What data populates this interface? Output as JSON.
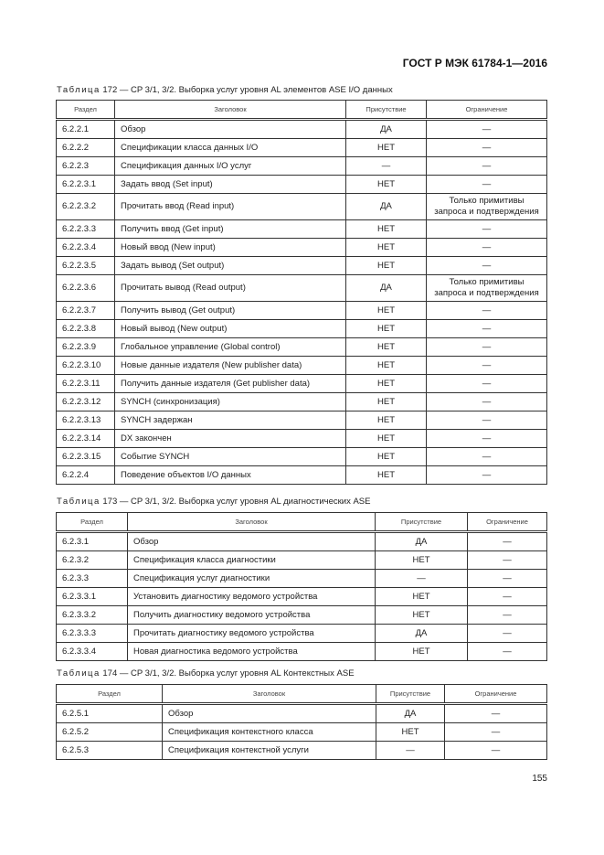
{
  "header": "ГОСТ Р МЭК 61784-1—2016",
  "page_number": "155",
  "tables": [
    {
      "caption_prefix": "Таблица",
      "caption": " 172 — CP 3/1, 3/2. Выборка услуг уровня AL элементов ASE I/O данных",
      "columns": [
        "Раздел",
        "Заголовок",
        "Присутствие",
        "Ограничение"
      ],
      "rows": [
        [
          "6.2.2.1",
          "Обзор",
          "ДА",
          "—"
        ],
        [
          "6.2.2.2",
          "Спецификации класса данных I/O",
          "НЕТ",
          "—"
        ],
        [
          "6.2.2.3",
          "Спецификация данных I/O услуг",
          "—",
          "—"
        ],
        [
          "6.2.2.3.1",
          "Задать ввод (Set input)",
          "НЕТ",
          "—"
        ],
        [
          "6.2.2.3.2",
          "Прочитать ввод (Read input)",
          "ДА",
          "Только примитивы запроса и подтверждения"
        ],
        [
          "6.2.2.3.3",
          "Получить ввод (Get input)",
          "НЕТ",
          "—"
        ],
        [
          "6.2.2.3.4",
          "Новый ввод (New input)",
          "НЕТ",
          "—"
        ],
        [
          "6.2.2.3.5",
          "Задать вывод (Set output)",
          "НЕТ",
          "—"
        ],
        [
          "6.2.2.3.6",
          "Прочитать вывод (Read output)",
          "ДА",
          "Только примитивы запроса и подтверждения"
        ],
        [
          "6.2.2.3.7",
          "Получить вывод (Get output)",
          "НЕТ",
          "—"
        ],
        [
          "6.2.2.3.8",
          "Новый вывод (New output)",
          "НЕТ",
          "—"
        ],
        [
          "6.2.2.3.9",
          "Глобальное управление (Global control)",
          "НЕТ",
          "—"
        ],
        [
          "6.2.2.3.10",
          "Новые данные издателя (New publisher data)",
          "НЕТ",
          "—"
        ],
        [
          "6.2.2.3.11",
          "Получить данные издателя (Get publisher data)",
          "НЕТ",
          "—"
        ],
        [
          "6.2.2.3.12",
          "SYNCH (синхронизация)",
          "НЕТ",
          "—"
        ],
        [
          "6.2.2.3.13",
          "SYNCH задержан",
          "НЕТ",
          "—"
        ],
        [
          "6.2.2.3.14",
          "DX закончен",
          "НЕТ",
          "—"
        ],
        [
          "6.2.2.3.15",
          "Событие SYNCH",
          "НЕТ",
          "—"
        ],
        [
          "6.2.2.4",
          "Поведение объектов I/O данных",
          "НЕТ",
          "—"
        ]
      ]
    },
    {
      "caption_prefix": "Таблица",
      "caption": " 173 — CP 3/1, 3/2. Выборка услуг уровня AL диагностических ASE",
      "columns": [
        "Раздел",
        "Заголовок",
        "Присутствие",
        "Ограничение"
      ],
      "rows": [
        [
          "6.2.3.1",
          "Обзор",
          "ДА",
          "—"
        ],
        [
          "6.2.3.2",
          "Спецификация класса диагностики",
          "НЕТ",
          "—"
        ],
        [
          "6.2.3.3",
          "Спецификация услуг диагностики",
          "—",
          "—"
        ],
        [
          "6.2.3.3.1",
          "Установить диагностику ведомого устройства",
          "НЕТ",
          "—"
        ],
        [
          "6.2.3.3.2",
          "Получить диагностику ведомого устройства",
          "НЕТ",
          "—"
        ],
        [
          "6.2.3.3.3",
          "Прочитать диагностику ведомого устройства",
          "ДА",
          "—"
        ],
        [
          "6.2.3.3.4",
          "Новая диагностика ведомого устройства",
          "НЕТ",
          "—"
        ]
      ]
    },
    {
      "caption_prefix": "Таблица",
      "caption": " 174 — CP 3/1, 3/2. Выборка услуг уровня AL Контекстных ASE",
      "columns": [
        "Раздел",
        "Заголовок",
        "Присутствие",
        "Ограничение"
      ],
      "rows": [
        [
          "6.2.5.1",
          "Обзор",
          "ДА",
          "—"
        ],
        [
          "6.2.5.2",
          "Спецификация контекстного класса",
          "НЕТ",
          "—"
        ],
        [
          "6.2.5.3",
          "Спецификация контекстной услуги",
          "—",
          "—"
        ]
      ]
    }
  ]
}
